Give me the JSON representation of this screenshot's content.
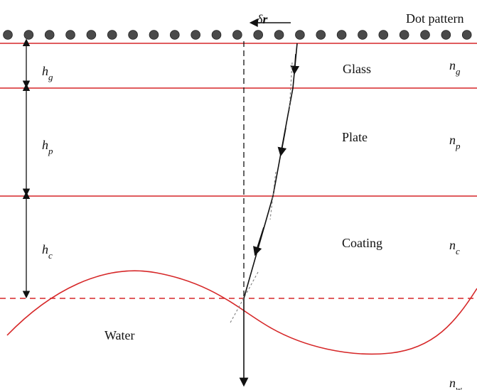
{
  "diagram": {
    "labels": {
      "dot_pattern": "Dot pattern",
      "delta": "δ",
      "vector_r": "r",
      "glass": "Glass",
      "plate": "Plate",
      "coating": "Coating",
      "water": "Water",
      "h_main": "h",
      "h_g_sub": "g",
      "h_p_sub": "p",
      "h_c_sub": "c",
      "n_main": "n",
      "n_g_sub": "g",
      "n_p_sub": "p",
      "n_c_sub": "c",
      "n_w_sub": "w"
    },
    "colors": {
      "interface_red": "#d62728",
      "dot_fill": "#4a4a4a",
      "ray_black": "#111111",
      "guide_gray": "#7a7a7a"
    }
  }
}
